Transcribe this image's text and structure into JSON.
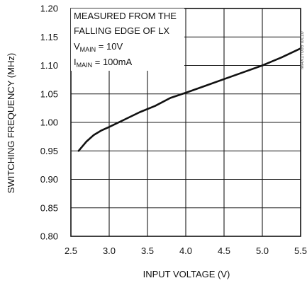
{
  "chart_data": {
    "type": "line",
    "title": "",
    "xlabel": "INPUT VOLTAGE (V)",
    "ylabel": "SWITCHING FREQUENCY (MHz)",
    "xlim": [
      2.5,
      5.5
    ],
    "ylim": [
      0.8,
      1.2
    ],
    "x_ticks": [
      2.5,
      3.0,
      3.5,
      4.0,
      4.5,
      5.0,
      5.5
    ],
    "y_ticks": [
      0.8,
      0.85,
      0.9,
      0.95,
      1.0,
      1.05,
      1.1,
      1.15,
      1.2
    ],
    "x_tick_labels": [
      "2.5",
      "3.0",
      "3.5",
      "4.0",
      "4.5",
      "5.0",
      "5.5"
    ],
    "y_tick_labels": [
      "0.80",
      "0.85",
      "0.90",
      "0.95",
      "1.00",
      "1.05",
      "1.10",
      "1.15",
      "1.20"
    ],
    "grid": true,
    "annotation": {
      "line1": "MEASURED FROM THE",
      "line2": "FALLING EDGE OF LX",
      "line3_main": "V",
      "line3_sub": "MAIN",
      "line3_rest": " = 10V",
      "line4_main": "I",
      "line4_sub": "MAIN",
      "line4_rest": " = 100mA"
    },
    "side_id": "MAX17009 toc10",
    "series": [
      {
        "x": [
          2.6,
          2.7,
          2.8,
          2.9,
          3.0,
          3.2,
          3.4,
          3.6,
          3.8,
          4.0,
          4.25,
          4.5,
          4.75,
          5.0,
          5.25,
          5.5
        ],
        "y": [
          0.95,
          0.966,
          0.978,
          0.986,
          0.992,
          1.005,
          1.018,
          1.029,
          1.043,
          1.052,
          1.064,
          1.076,
          1.088,
          1.1,
          1.114,
          1.13
        ]
      }
    ],
    "colors": {
      "line": "#111111",
      "grid": "#1a1a1a",
      "background": "#ffffff"
    }
  }
}
